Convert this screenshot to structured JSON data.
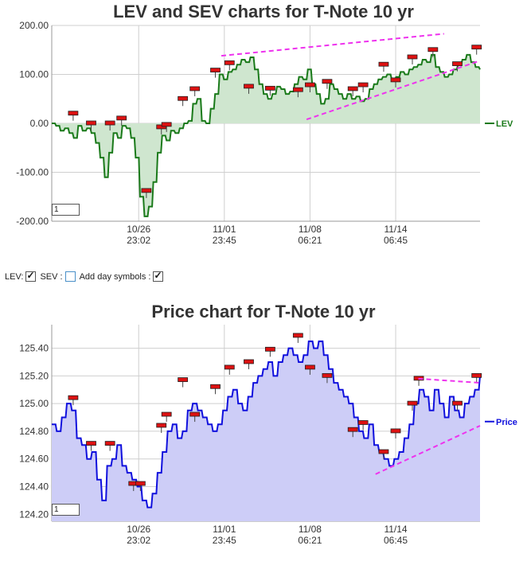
{
  "controls": {
    "lev_label": "LEV:",
    "sev_label": "SEV :",
    "day_symbols_label": "Add day symbols :",
    "lev_checked": true,
    "sev_checked": false,
    "day_symbols_checked": true
  },
  "chart_data": [
    {
      "type": "line",
      "title": "LEV and SEV charts for T-Note 10 yr",
      "xlabel": "",
      "ylabel": "",
      "ylim": [
        -200,
        200
      ],
      "yticks": [
        "200.00",
        "100.00",
        "0.00",
        "-100.00",
        "-200.00"
      ],
      "x_ticks": [
        {
          "date": "10/26",
          "time": "23:02"
        },
        {
          "date": "11/01",
          "time": "23:45"
        },
        {
          "date": "11/08",
          "time": "06:21"
        },
        {
          "date": "11/14",
          "time": "06:45"
        }
      ],
      "grid": true,
      "legend": "right",
      "zoom_value": "1",
      "series": [
        {
          "name": "LEV",
          "color": "#1a7a1a",
          "values": [
            0,
            -5,
            -15,
            -10,
            -20,
            -30,
            -5,
            -15,
            -10,
            -20,
            -40,
            -70,
            -110,
            -60,
            -20,
            -30,
            -5,
            -10,
            -30,
            -70,
            -150,
            -190,
            -170,
            -120,
            -60,
            -25,
            -35,
            -15,
            -20,
            -10,
            0,
            5,
            40,
            50,
            5,
            0,
            30,
            60,
            100,
            90,
            105,
            110,
            120,
            130,
            125,
            135,
            110,
            80,
            60,
            50,
            60,
            75,
            70,
            60,
            65,
            80,
            95,
            90,
            110,
            80,
            60,
            40,
            50,
            80,
            70,
            60,
            50,
            60,
            50,
            55,
            45,
            50,
            70,
            80,
            90,
            95,
            100,
            90,
            95,
            105,
            100,
            110,
            115,
            120,
            130,
            125,
            140,
            115,
            105,
            95,
            100,
            110,
            120,
            130,
            140,
            125,
            115,
            110
          ]
        },
        {
          "name": "Trend",
          "color": "#ee33ee",
          "dashed": true,
          "segments": [
            {
              "from": [
                0.396,
                138
              ],
              "to": [
                0.916,
                183
              ]
            },
            {
              "from": [
                0.595,
                8
              ],
              "to": [
                1.0,
                128
              ]
            }
          ]
        }
      ],
      "day_markers": [
        {
          "x": 0.05,
          "y": 20
        },
        {
          "x": 0.092,
          "y": 0
        },
        {
          "x": 0.136,
          "y": 0
        },
        {
          "x": 0.163,
          "y": 10
        },
        {
          "x": 0.221,
          "y": -138
        },
        {
          "x": 0.256,
          "y": -8
        },
        {
          "x": 0.268,
          "y": -3
        },
        {
          "x": 0.306,
          "y": 50
        },
        {
          "x": 0.334,
          "y": 70
        },
        {
          "x": 0.382,
          "y": 108
        },
        {
          "x": 0.415,
          "y": 123
        },
        {
          "x": 0.46,
          "y": 75
        },
        {
          "x": 0.51,
          "y": 71
        },
        {
          "x": 0.575,
          "y": 68
        },
        {
          "x": 0.603,
          "y": 78
        },
        {
          "x": 0.643,
          "y": 85
        },
        {
          "x": 0.703,
          "y": 70
        },
        {
          "x": 0.727,
          "y": 78
        },
        {
          "x": 0.775,
          "y": 120
        },
        {
          "x": 0.803,
          "y": 88
        },
        {
          "x": 0.842,
          "y": 135
        },
        {
          "x": 0.89,
          "y": 150
        },
        {
          "x": 0.947,
          "y": 121
        },
        {
          "x": 0.992,
          "y": 155
        }
      ]
    },
    {
      "type": "area",
      "title": "Price chart for T-Note 10 yr",
      "xlabel": "",
      "ylabel": "",
      "ylim": [
        124.15,
        125.57
      ],
      "yticks": [
        "125.40",
        "125.20",
        "125.00",
        "124.80",
        "124.60",
        "124.40",
        "124.20"
      ],
      "x_ticks": [
        {
          "date": "10/26",
          "time": "23:02"
        },
        {
          "date": "11/01",
          "time": "23:45"
        },
        {
          "date": "11/08",
          "time": "06:21"
        },
        {
          "date": "11/14",
          "time": "06:45"
        }
      ],
      "grid": true,
      "legend": "right",
      "zoom_value": "1",
      "series": [
        {
          "name": "Price",
          "color": "#1010dd",
          "values": [
            124.85,
            124.8,
            124.9,
            125.0,
            124.95,
            124.75,
            124.7,
            124.6,
            124.65,
            124.45,
            124.3,
            124.55,
            124.6,
            124.7,
            124.55,
            124.5,
            124.45,
            124.4,
            124.3,
            124.25,
            124.35,
            124.5,
            124.65,
            124.8,
            124.85,
            124.75,
            124.8,
            124.95,
            125.0,
            124.95,
            124.9,
            124.85,
            124.8,
            124.85,
            124.95,
            125.05,
            125.1,
            125.0,
            124.95,
            125.05,
            125.15,
            125.2,
            125.25,
            125.3,
            125.2,
            125.3,
            125.35,
            125.4,
            125.35,
            125.3,
            125.35,
            125.45,
            125.4,
            125.45,
            125.35,
            125.25,
            125.15,
            125.1,
            125.05,
            125.0,
            124.9,
            124.8,
            124.75,
            124.85,
            124.7,
            124.65,
            124.6,
            124.55,
            124.6,
            124.65,
            124.75,
            124.85,
            125.0,
            125.1,
            125.05,
            124.95,
            125.1,
            125.0,
            124.9,
            125.05,
            124.95,
            124.9,
            125.0,
            125.05,
            125.1,
            125.2
          ]
        },
        {
          "name": "Trend",
          "color": "#ee33ee",
          "dashed": true,
          "segments": [
            {
              "from": [
                0.856,
                125.18
              ],
              "to": [
                1.0,
                125.15
              ]
            },
            {
              "from": [
                0.756,
                124.49
              ],
              "to": [
                1.0,
                124.84
              ]
            }
          ]
        }
      ],
      "day_markers": [
        {
          "x": 0.05,
          "y": 125.04
        },
        {
          "x": 0.092,
          "y": 124.71
        },
        {
          "x": 0.136,
          "y": 124.71
        },
        {
          "x": 0.191,
          "y": 124.42
        },
        {
          "x": 0.207,
          "y": 124.42
        },
        {
          "x": 0.256,
          "y": 124.84
        },
        {
          "x": 0.268,
          "y": 124.92
        },
        {
          "x": 0.306,
          "y": 125.17
        },
        {
          "x": 0.334,
          "y": 124.92
        },
        {
          "x": 0.382,
          "y": 125.12
        },
        {
          "x": 0.415,
          "y": 125.26
        },
        {
          "x": 0.46,
          "y": 125.3
        },
        {
          "x": 0.51,
          "y": 125.39
        },
        {
          "x": 0.575,
          "y": 125.49
        },
        {
          "x": 0.603,
          "y": 125.26
        },
        {
          "x": 0.643,
          "y": 125.2
        },
        {
          "x": 0.703,
          "y": 124.81
        },
        {
          "x": 0.727,
          "y": 124.86
        },
        {
          "x": 0.775,
          "y": 124.65
        },
        {
          "x": 0.803,
          "y": 124.8
        },
        {
          "x": 0.842,
          "y": 125.0
        },
        {
          "x": 0.857,
          "y": 125.18
        },
        {
          "x": 0.947,
          "y": 125.0
        },
        {
          "x": 0.992,
          "y": 125.2
        }
      ]
    }
  ]
}
